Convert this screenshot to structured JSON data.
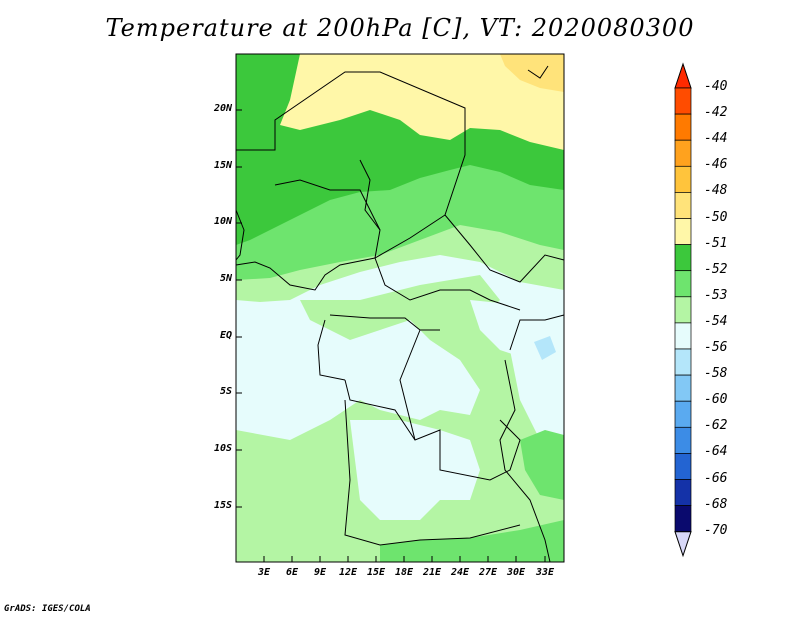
{
  "title": "Temperature at 200hPa [C], VT: 2020080300",
  "credit": "GrADS: IGES/COLA",
  "map": {
    "lat_ticks": [
      "20N",
      "15N",
      "10N",
      "5N",
      "EQ",
      "5S",
      "10S",
      "15S"
    ],
    "lon_ticks": [
      "3E",
      "6E",
      "9E",
      "12E",
      "15E",
      "18E",
      "21E",
      "24E",
      "27E",
      "30E",
      "33E"
    ],
    "lon_range": [
      "0E",
      "35E"
    ],
    "lat_range": [
      "20S",
      "25N"
    ]
  },
  "colorbar": {
    "labels": [
      "-40",
      "-42",
      "-44",
      "-46",
      "-48",
      "-50",
      "-51",
      "-52",
      "-53",
      "-54",
      "-56",
      "-58",
      "-60",
      "-62",
      "-64",
      "-66",
      "-68",
      "-70"
    ],
    "colors": [
      "#ff2a00",
      "#ff4c00",
      "#ff7a00",
      "#ffa21e",
      "#ffc43c",
      "#ffe37a",
      "#fff7a8",
      "#3cc83c",
      "#6ee46e",
      "#b4f5a4",
      "#e6fcfc",
      "#b4e6fa",
      "#82c8f5",
      "#5aaaf0",
      "#3c8ce6",
      "#2364d2",
      "#1432a8",
      "#0a0a6e",
      "#d8d8f8"
    ]
  }
}
